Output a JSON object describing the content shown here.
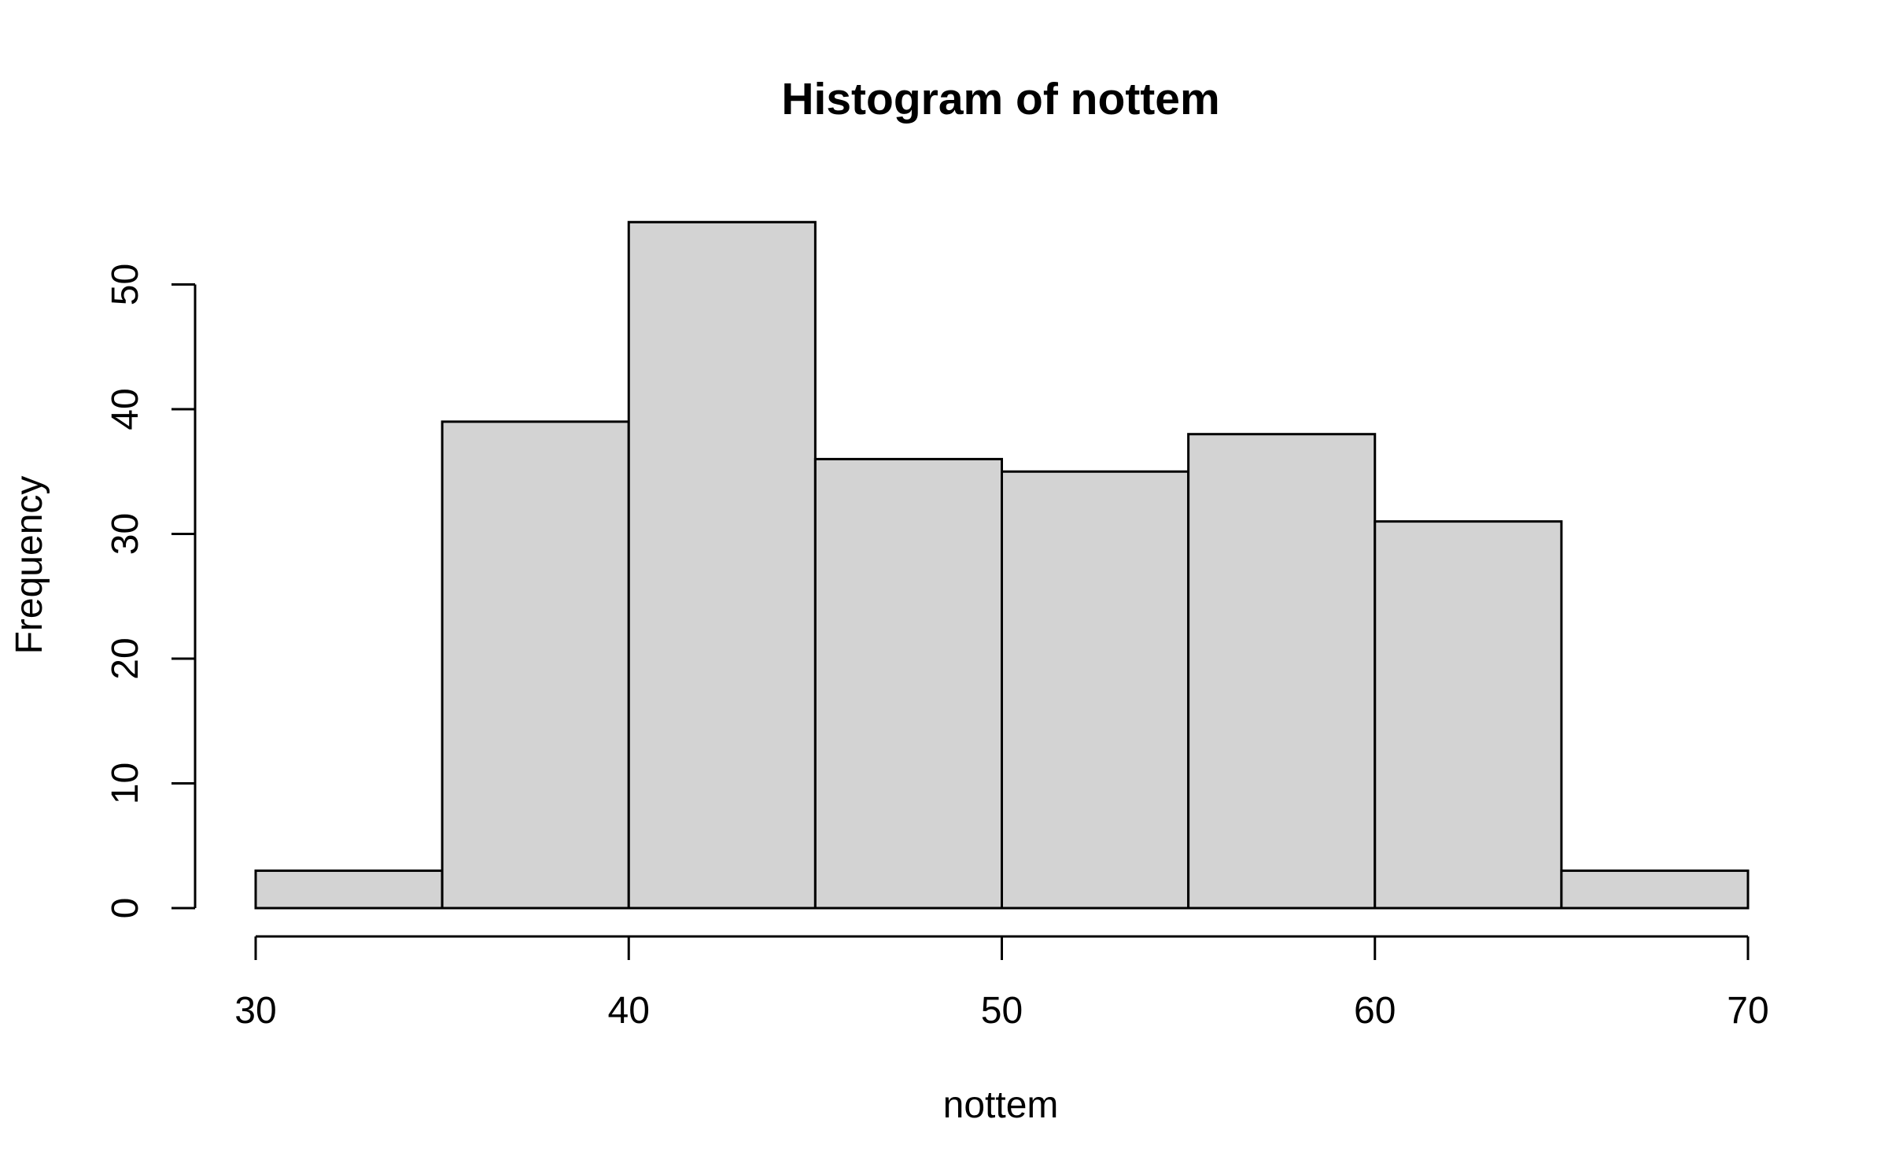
{
  "chart_data": {
    "type": "bar",
    "title": "Histogram of nottem",
    "xlabel": "nottem",
    "ylabel": "Frequency",
    "bins": [
      {
        "start": 30,
        "end": 35,
        "count": 3
      },
      {
        "start": 35,
        "end": 40,
        "count": 39
      },
      {
        "start": 40,
        "end": 45,
        "count": 55
      },
      {
        "start": 45,
        "end": 50,
        "count": 36
      },
      {
        "start": 50,
        "end": 55,
        "count": 35
      },
      {
        "start": 55,
        "end": 60,
        "count": 38
      },
      {
        "start": 60,
        "end": 65,
        "count": 31
      },
      {
        "start": 65,
        "end": 70,
        "count": 3
      }
    ],
    "xlim": [
      30,
      70
    ],
    "ylim": [
      0,
      55
    ],
    "x_ticks": [
      30,
      40,
      50,
      60,
      70
    ],
    "y_ticks": [
      0,
      10,
      20,
      30,
      40,
      50
    ],
    "bar_fill": "#d3d3d3",
    "bar_stroke": "#000000",
    "grid": false,
    "legend": "none"
  }
}
